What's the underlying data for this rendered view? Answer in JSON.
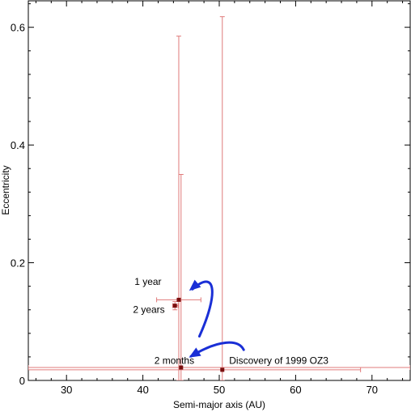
{
  "colors": {
    "errorbar": "#e07b7b",
    "point": "#7a0f0f",
    "arrow": "#1a2fd6",
    "axis": "#000000"
  },
  "chart_data": {
    "type": "scatter",
    "xlabel": "Semi-major axis (AU)",
    "ylabel": "Eccentricity",
    "xlim": [
      25,
      75
    ],
    "ylim": [
      0,
      0.645
    ],
    "x_ticks": [
      30,
      40,
      50,
      60,
      70
    ],
    "x_tick_labels": [
      "30",
      "40",
      "50",
      "60",
      "70"
    ],
    "y_ticks": [
      0,
      0.2,
      0.4,
      0.6
    ],
    "y_tick_labels": [
      "0",
      "0.2",
      "0.4",
      "0.6"
    ],
    "grid": false,
    "points": [
      {
        "x": 50.4,
        "y": 0.018,
        "x_err": [
          22.0,
          68.5
        ],
        "y_err": [
          0.0,
          0.618
        ]
      },
      {
        "x": 45.0,
        "y": 0.022,
        "x_err": [
          25.0,
          75.0
        ],
        "y_err": [
          0.0,
          0.35
        ]
      },
      {
        "x": 44.7,
        "y": 0.137,
        "x_err": [
          41.8,
          47.6
        ],
        "y_err": [
          0.0,
          0.585
        ]
      },
      {
        "x": 44.2,
        "y": 0.127,
        "x_err": [
          43.9,
          44.6
        ],
        "y_err": [
          0.12,
          0.134
        ]
      }
    ],
    "annotations": [
      {
        "text": "Discovery of 1999 OZ3",
        "x": 51.3,
        "y": 0.028
      },
      {
        "text": "2 months",
        "x": 41.5,
        "y": 0.028
      },
      {
        "text": "2 years",
        "x": 38.7,
        "y": 0.115
      },
      {
        "text": "1 year",
        "x": 38.9,
        "y": 0.162
      }
    ],
    "arrows": [
      {
        "path": [
          [
            53.2,
            0.052
          ],
          [
            52.5,
            0.07
          ],
          [
            50.0,
            0.07
          ],
          [
            46.3,
            0.041
          ]
        ],
        "head": [
          46.3,
          0.041
        ]
      },
      {
        "path": [
          [
            47.4,
            0.075
          ],
          [
            50.0,
            0.15
          ],
          [
            49.5,
            0.19
          ],
          [
            46.5,
            0.155
          ]
        ],
        "head": [
          46.3,
          0.155
        ]
      }
    ]
  }
}
